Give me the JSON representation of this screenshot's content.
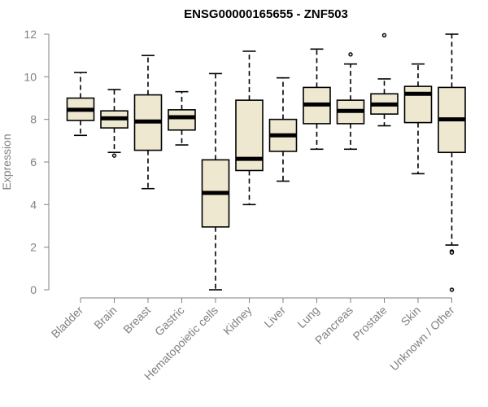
{
  "chart_data": {
    "type": "boxplot",
    "title": "ENSG00000165655 - ZNF503",
    "ylabel": "Expression",
    "ylim": [
      0,
      12
    ],
    "yticks": [
      0,
      2,
      4,
      6,
      8,
      10,
      12
    ],
    "grid": false,
    "box_color": "#EFE8D0",
    "categories": [
      "Bladder",
      "Brain",
      "Breast",
      "Gastric",
      "Hematopoietic cells",
      "Kidney",
      "Liver",
      "Lung",
      "Pancreas",
      "Prostate",
      "Skin",
      "Unknown / Other"
    ],
    "boxes": [
      {
        "min": 7.25,
        "q1": 7.95,
        "median": 8.45,
        "q3": 9.0,
        "max": 10.2,
        "outliers": []
      },
      {
        "min": 6.45,
        "q1": 7.6,
        "median": 8.05,
        "q3": 8.4,
        "max": 9.4,
        "outliers": [
          6.3
        ]
      },
      {
        "min": 4.75,
        "q1": 6.55,
        "median": 7.9,
        "q3": 9.15,
        "max": 11.0,
        "outliers": []
      },
      {
        "min": 6.8,
        "q1": 7.5,
        "median": 8.1,
        "q3": 8.45,
        "max": 9.3,
        "outliers": []
      },
      {
        "min": 0.0,
        "q1": 2.95,
        "median": 4.55,
        "q3": 6.1,
        "max": 10.15,
        "outliers": []
      },
      {
        "min": 4.0,
        "q1": 5.6,
        "median": 6.15,
        "q3": 8.9,
        "max": 11.2,
        "outliers": []
      },
      {
        "min": 5.1,
        "q1": 6.5,
        "median": 7.25,
        "q3": 8.0,
        "max": 9.95,
        "outliers": []
      },
      {
        "min": 6.6,
        "q1": 7.8,
        "median": 8.7,
        "q3": 9.5,
        "max": 11.3,
        "outliers": []
      },
      {
        "min": 6.6,
        "q1": 7.8,
        "median": 8.4,
        "q3": 8.9,
        "max": 10.6,
        "outliers": [
          11.05
        ]
      },
      {
        "min": 7.7,
        "q1": 8.25,
        "median": 8.7,
        "q3": 9.2,
        "max": 9.9,
        "outliers": [
          11.95
        ]
      },
      {
        "min": 5.45,
        "q1": 7.85,
        "median": 9.2,
        "q3": 9.55,
        "max": 10.6,
        "outliers": []
      },
      {
        "min": 2.1,
        "q1": 6.45,
        "median": 8.0,
        "q3": 9.5,
        "max": 12.0,
        "outliers": [
          1.8,
          1.75,
          0.0
        ]
      }
    ]
  }
}
